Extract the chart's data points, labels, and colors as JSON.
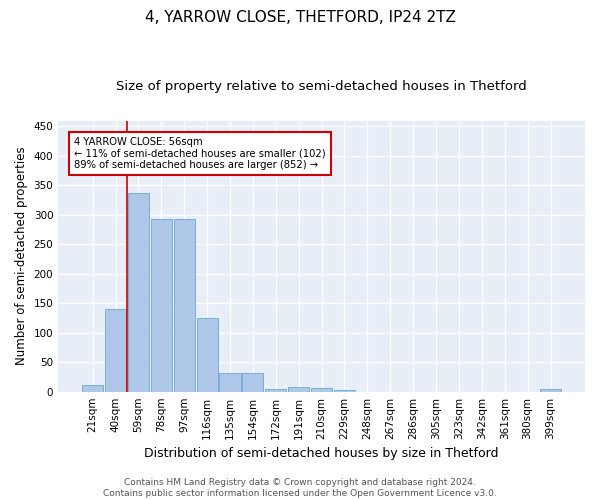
{
  "title": "4, YARROW CLOSE, THETFORD, IP24 2TZ",
  "subtitle": "Size of property relative to semi-detached houses in Thetford",
  "xlabel": "Distribution of semi-detached houses by size in Thetford",
  "ylabel": "Number of semi-detached properties",
  "categories": [
    "21sqm",
    "40sqm",
    "59sqm",
    "78sqm",
    "97sqm",
    "116sqm",
    "135sqm",
    "154sqm",
    "172sqm",
    "191sqm",
    "210sqm",
    "229sqm",
    "248sqm",
    "267sqm",
    "286sqm",
    "305sqm",
    "323sqm",
    "342sqm",
    "361sqm",
    "380sqm",
    "399sqm"
  ],
  "values": [
    12,
    140,
    337,
    293,
    293,
    125,
    32,
    32,
    5,
    8,
    6,
    3,
    0,
    0,
    0,
    0,
    0,
    0,
    0,
    0,
    4
  ],
  "bar_color": "#aec6e8",
  "bar_edge_color": "#6aaad4",
  "property_line_color": "#cc0000",
  "annotation_text": "4 YARROW CLOSE: 56sqm\n← 11% of semi-detached houses are smaller (102)\n89% of semi-detached houses are larger (852) →",
  "annotation_box_color": "#ffffff",
  "annotation_box_edge": "#cc0000",
  "ylim": [
    0,
    460
  ],
  "yticks": [
    0,
    50,
    100,
    150,
    200,
    250,
    300,
    350,
    400,
    450
  ],
  "background_color": "#e8eef8",
  "grid_color": "#ffffff",
  "footer": "Contains HM Land Registry data © Crown copyright and database right 2024.\nContains public sector information licensed under the Open Government Licence v3.0.",
  "title_fontsize": 11,
  "subtitle_fontsize": 9.5,
  "xlabel_fontsize": 9,
  "ylabel_fontsize": 8.5,
  "tick_fontsize": 7.5,
  "footer_fontsize": 6.5
}
